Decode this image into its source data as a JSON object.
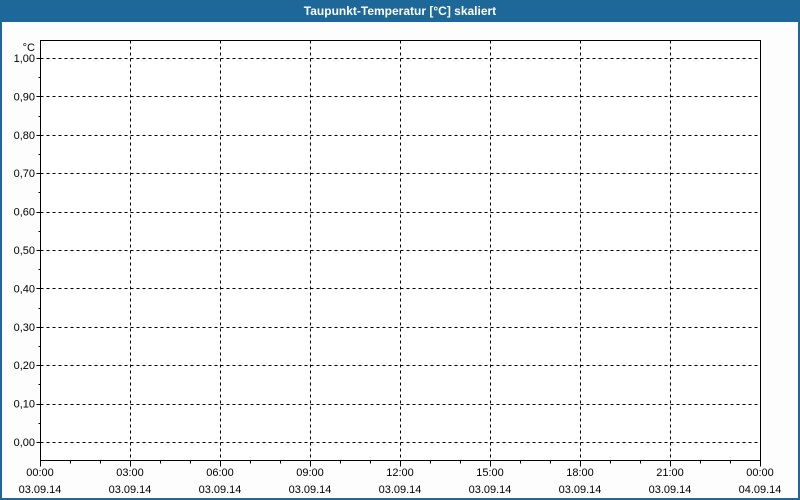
{
  "window": {
    "title": "Taupunkt-Temperatur [°C] skaliert"
  },
  "colors": {
    "titlebar_bg": "#1d6899",
    "frame_border": "#1d6899",
    "titlebar_text": "#ffffff",
    "page_bg": "#fcfdfc",
    "plot_bg": "#ffffff",
    "grid": "#000000",
    "axis": "#000000",
    "text": "#000000"
  },
  "chart_data": {
    "type": "line",
    "title": "Taupunkt-Temperatur [°C] skaliert",
    "ylabel": "°C",
    "xlabel": "",
    "ylim": [
      0.0,
      1.0
    ],
    "y_tick_step": 0.1,
    "y_minor_tick_step": 0.05,
    "x_hours_range": [
      0,
      24
    ],
    "x_major_tick_hours": 3,
    "x_minor_tick_hours": 1,
    "grid": true,
    "grid_style": "dashed",
    "legend_position": "none",
    "series": [],
    "y_ticks": [
      {
        "value": 1.0,
        "label": "1,00"
      },
      {
        "value": 0.9,
        "label": "0,90"
      },
      {
        "value": 0.8,
        "label": "0,80"
      },
      {
        "value": 0.7,
        "label": "0,70"
      },
      {
        "value": 0.6,
        "label": "0,60"
      },
      {
        "value": 0.5,
        "label": "0,50"
      },
      {
        "value": 0.4,
        "label": "0,40"
      },
      {
        "value": 0.3,
        "label": "0,30"
      },
      {
        "value": 0.2,
        "label": "0,20"
      },
      {
        "value": 0.1,
        "label": "0,10"
      },
      {
        "value": 0.0,
        "label": "0,00"
      }
    ],
    "x_ticks": [
      {
        "hour": 0,
        "time": "00:00",
        "date": "03.09.14"
      },
      {
        "hour": 3,
        "time": "03:00",
        "date": "03.09.14"
      },
      {
        "hour": 6,
        "time": "06:00",
        "date": "03.09.14"
      },
      {
        "hour": 9,
        "time": "09:00",
        "date": "03.09.14"
      },
      {
        "hour": 12,
        "time": "12:00",
        "date": "03.09.14"
      },
      {
        "hour": 15,
        "time": "15:00",
        "date": "03.09.14"
      },
      {
        "hour": 18,
        "time": "18:00",
        "date": "03.09.14"
      },
      {
        "hour": 21,
        "time": "21:00",
        "date": "03.09.14"
      },
      {
        "hour": 24,
        "time": "00:00",
        "date": "04.09.14"
      }
    ]
  }
}
